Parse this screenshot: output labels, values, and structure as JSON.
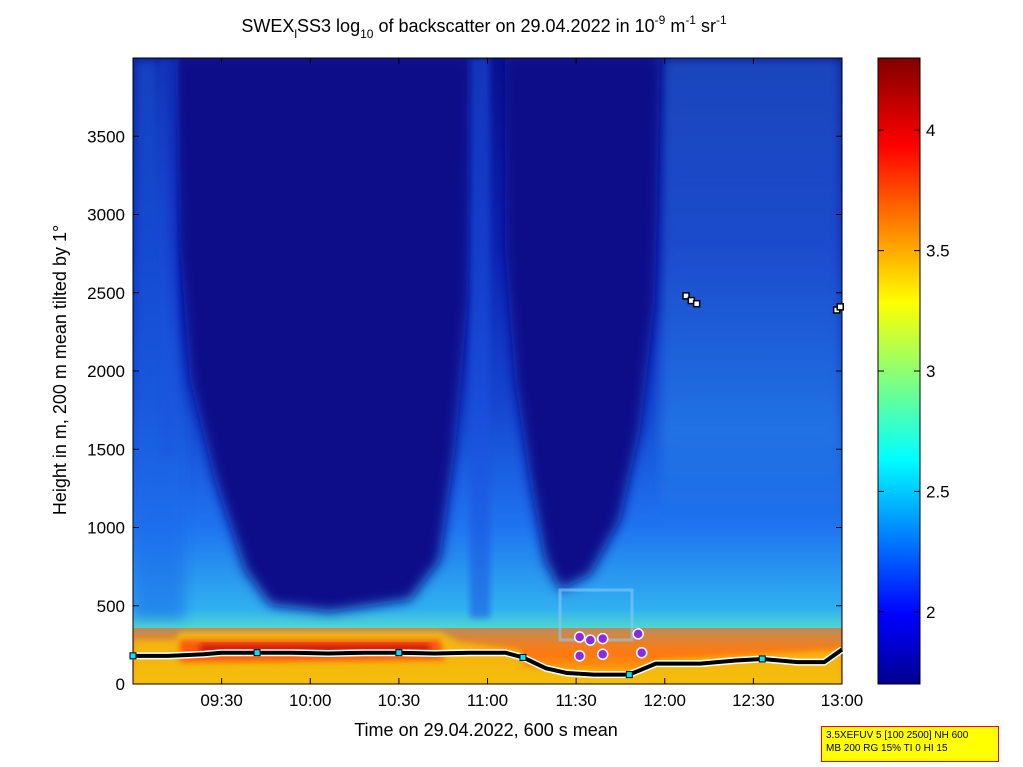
{
  "chart_data": {
    "type": "heatmap",
    "title": {
      "prefix": "SWEX",
      "sub1": "l",
      "mid1": "SS3 log",
      "sub2": "10",
      "mid2": " of backscatter on 29.04.2022 in 10",
      "sup1": "-9",
      "mid3": " m",
      "sup2": "-1",
      "mid4": " sr",
      "sup3": "-1"
    },
    "xlabel": "Time on 29.04.2022, 600 s mean",
    "ylabel": "Height in m, 200 m mean tilted by 1°",
    "x_range_hours": [
      9.0,
      13.0
    ],
    "y_range_m": [
      0,
      4000
    ],
    "x_ticks": [
      {
        "hours": 9.5,
        "label": "09:30"
      },
      {
        "hours": 10.0,
        "label": "10:00"
      },
      {
        "hours": 10.5,
        "label": "10:30"
      },
      {
        "hours": 11.0,
        "label": "11:00"
      },
      {
        "hours": 11.5,
        "label": "11:30"
      },
      {
        "hours": 12.0,
        "label": "12:00"
      },
      {
        "hours": 12.5,
        "label": "12:30"
      },
      {
        "hours": 13.0,
        "label": "13:00"
      }
    ],
    "y_ticks": [
      {
        "value": 0,
        "label": "0"
      },
      {
        "value": 500,
        "label": "500"
      },
      {
        "value": 1000,
        "label": "1000"
      },
      {
        "value": 1500,
        "label": "1500"
      },
      {
        "value": 2000,
        "label": "2000"
      },
      {
        "value": 2500,
        "label": "2500"
      },
      {
        "value": 3000,
        "label": "3000"
      },
      {
        "value": 3500,
        "label": "3500"
      }
    ],
    "colorbar": {
      "range": [
        1.7,
        4.3
      ],
      "colormap": "jet",
      "ticks": [
        {
          "value": 2,
          "label": "2"
        },
        {
          "value": 2.5,
          "label": "2.5"
        },
        {
          "value": 3,
          "label": "3"
        },
        {
          "value": 3.5,
          "label": "3.5"
        },
        {
          "value": 4,
          "label": "4"
        }
      ]
    },
    "mixing_layer_height": {
      "hours": [
        9.0,
        9.2,
        9.4,
        9.5,
        9.7,
        9.9,
        10.1,
        10.3,
        10.5,
        10.7,
        10.9,
        11.1,
        11.2,
        11.33,
        11.45,
        11.6,
        11.8,
        11.95,
        12.2,
        12.4,
        12.55,
        12.75,
        12.9,
        13.0
      ],
      "values_m": [
        180,
        180,
        190,
        200,
        200,
        200,
        195,
        200,
        200,
        195,
        200,
        200,
        170,
        100,
        70,
        60,
        60,
        130,
        130,
        150,
        160,
        140,
        140,
        220
      ]
    },
    "cloud_base_points": [
      {
        "hours": 12.12,
        "value_m": 2480
      },
      {
        "hours": 12.15,
        "value_m": 2450
      },
      {
        "hours": 12.18,
        "value_m": 2430
      },
      {
        "hours": 12.97,
        "value_m": 2390
      },
      {
        "hours": 12.99,
        "value_m": 2410
      }
    ],
    "aerosol_layer_points": [
      {
        "hours": 11.52,
        "value_m": 300
      },
      {
        "hours": 11.58,
        "value_m": 280
      },
      {
        "hours": 11.65,
        "value_m": 290
      },
      {
        "hours": 11.52,
        "value_m": 180
      },
      {
        "hours": 11.65,
        "value_m": 190
      },
      {
        "hours": 11.85,
        "value_m": 320
      },
      {
        "hours": 11.87,
        "value_m": 200
      }
    ],
    "colors": {
      "plot_background": "#0a0f96",
      "marker_cyan": "#00e5ff",
      "marker_purple": "#8a2be2",
      "infobox_background": "#ffff00",
      "infobox_border": "#ff0000"
    }
  },
  "infobox": {
    "line1": "3.5XEFUV 5 [100 2500] NH 600",
    "line2": "MB 200 RG 15% TI 0 HI 15"
  }
}
